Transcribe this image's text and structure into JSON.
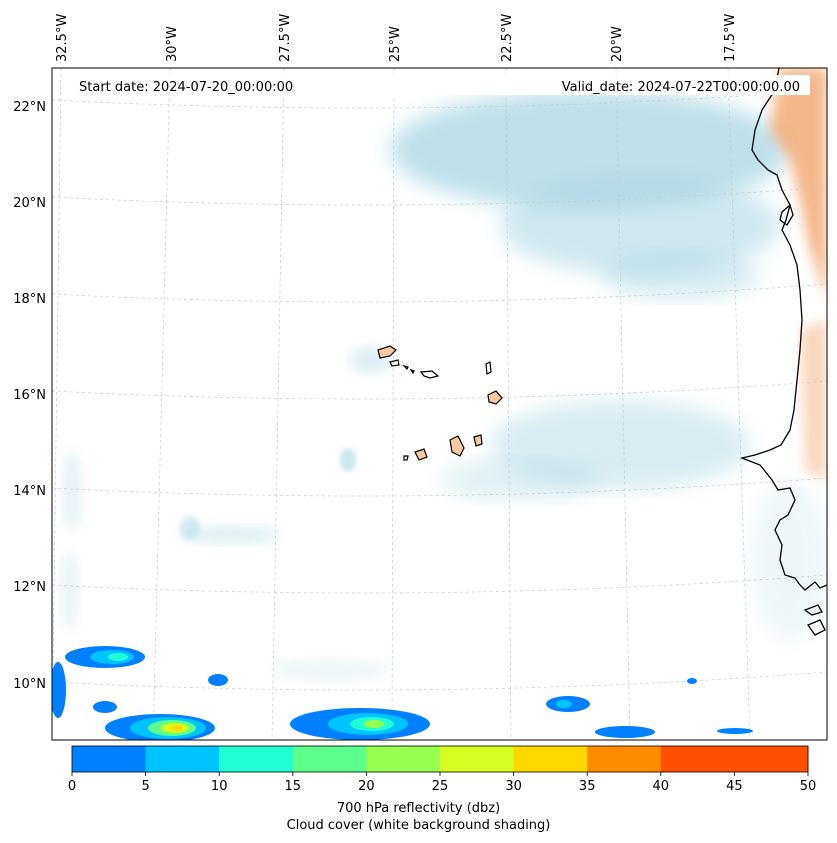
{
  "header": {
    "start_date": "Start date: 2024-07-20_00:00:00",
    "valid_date": "Valid_date: 2024-07-22T00:00:00.00"
  },
  "lon_ticks": [
    "32.5°W",
    "30°W",
    "27.5°W",
    "25°W",
    "22.5°W",
    "20°W",
    "17.5°W"
  ],
  "lat_ticks": [
    "22°N",
    "20°N",
    "18°N",
    "16°N",
    "14°N",
    "12°N",
    "10°N"
  ],
  "colorbar": {
    "title": "700 hPa reflectivity (dbz)",
    "subtitle": "Cloud cover (white background shading)",
    "ticks": [
      "0",
      "5",
      "10",
      "15",
      "20",
      "25",
      "30",
      "35",
      "40",
      "45",
      "50"
    ],
    "colors": [
      "#0080ff",
      "#00c4ff",
      "#20ffd4",
      "#5cff8c",
      "#96ff50",
      "#d4ff20",
      "#ffd800",
      "#ff8c00",
      "#ff5000"
    ]
  },
  "colors": {
    "cloud": "#a9d6e4",
    "land": "#f5c9a2",
    "orange_land": "#f3a66e",
    "coast": "#000000",
    "grid": "#c8c8c8"
  }
}
